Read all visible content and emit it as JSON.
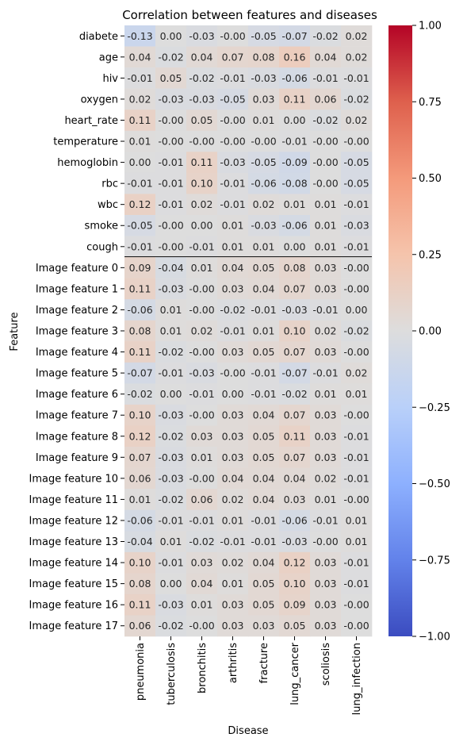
{
  "chart_data": {
    "type": "heatmap",
    "title": "Correlation between features and diseases",
    "xlabel": "Disease",
    "ylabel": "Feature",
    "columns": [
      "pneumonia",
      "tuberculosis",
      "bronchitis",
      "arthritis",
      "fracture",
      "lung_cancer",
      "scoliosis",
      "lung_infection"
    ],
    "rows": [
      {
        "label": "diabete",
        "values": [
          -0.13,
          0.0,
          -0.03,
          -0.0,
          -0.05,
          -0.07,
          -0.02,
          0.02
        ]
      },
      {
        "label": "age",
        "values": [
          0.04,
          -0.02,
          0.04,
          0.07,
          0.08,
          0.16,
          0.04,
          0.02
        ]
      },
      {
        "label": "hiv",
        "values": [
          -0.01,
          0.05,
          -0.02,
          -0.01,
          -0.03,
          -0.06,
          -0.01,
          -0.01
        ]
      },
      {
        "label": "oxygen",
        "values": [
          0.02,
          -0.03,
          -0.03,
          -0.05,
          0.03,
          0.11,
          0.06,
          -0.02
        ]
      },
      {
        "label": "heart_rate",
        "values": [
          0.11,
          -0.0,
          0.05,
          -0.0,
          0.01,
          0.0,
          -0.02,
          0.02
        ]
      },
      {
        "label": "temperature",
        "values": [
          0.01,
          -0.0,
          -0.0,
          -0.0,
          -0.0,
          -0.01,
          -0.0,
          -0.0
        ]
      },
      {
        "label": "hemoglobin",
        "values": [
          0.0,
          -0.01,
          0.11,
          -0.03,
          -0.05,
          -0.09,
          -0.0,
          -0.05
        ]
      },
      {
        "label": "rbc",
        "values": [
          -0.01,
          -0.01,
          0.1,
          -0.01,
          -0.06,
          -0.08,
          -0.0,
          -0.05
        ]
      },
      {
        "label": "wbc",
        "values": [
          0.12,
          -0.01,
          0.02,
          -0.01,
          0.02,
          0.01,
          0.01,
          -0.01
        ]
      },
      {
        "label": "smoke",
        "values": [
          -0.05,
          -0.0,
          0.0,
          0.01,
          -0.03,
          -0.06,
          0.01,
          -0.03
        ]
      },
      {
        "label": "cough",
        "values": [
          -0.01,
          -0.0,
          -0.01,
          0.01,
          0.01,
          0.0,
          0.01,
          -0.01
        ]
      },
      {
        "label": "Image feature 0",
        "values": [
          0.09,
          -0.04,
          0.01,
          0.04,
          0.05,
          0.08,
          0.03,
          -0.0
        ]
      },
      {
        "label": "Image feature 1",
        "values": [
          0.11,
          -0.03,
          -0.0,
          0.03,
          0.04,
          0.07,
          0.03,
          -0.0
        ]
      },
      {
        "label": "Image feature 2",
        "values": [
          -0.06,
          0.01,
          -0.0,
          -0.02,
          -0.01,
          -0.03,
          -0.01,
          0.0
        ]
      },
      {
        "label": "Image feature 3",
        "values": [
          0.08,
          0.01,
          0.02,
          -0.01,
          0.01,
          0.1,
          0.02,
          -0.02
        ]
      },
      {
        "label": "Image feature 4",
        "values": [
          0.11,
          -0.02,
          -0.0,
          0.03,
          0.05,
          0.07,
          0.03,
          -0.0
        ]
      },
      {
        "label": "Image feature 5",
        "values": [
          -0.07,
          -0.01,
          -0.03,
          -0.0,
          -0.01,
          -0.07,
          -0.01,
          0.02
        ]
      },
      {
        "label": "Image feature 6",
        "values": [
          -0.02,
          0.0,
          -0.01,
          0.0,
          -0.01,
          -0.02,
          0.01,
          0.01
        ]
      },
      {
        "label": "Image feature 7",
        "values": [
          0.1,
          -0.03,
          -0.0,
          0.03,
          0.04,
          0.07,
          0.03,
          -0.0
        ]
      },
      {
        "label": "Image feature 8",
        "values": [
          0.12,
          -0.02,
          0.03,
          0.03,
          0.05,
          0.11,
          0.03,
          -0.01
        ]
      },
      {
        "label": "Image feature 9",
        "values": [
          0.07,
          -0.03,
          0.01,
          0.03,
          0.05,
          0.07,
          0.03,
          -0.01
        ]
      },
      {
        "label": "Image feature 10",
        "values": [
          0.06,
          -0.03,
          -0.0,
          0.04,
          0.04,
          0.04,
          0.02,
          -0.01
        ]
      },
      {
        "label": "Image feature 11",
        "values": [
          0.01,
          -0.02,
          0.06,
          0.02,
          0.04,
          0.03,
          0.01,
          -0.0
        ]
      },
      {
        "label": "Image feature 12",
        "values": [
          -0.06,
          -0.01,
          -0.01,
          0.01,
          -0.01,
          -0.06,
          -0.01,
          0.01
        ]
      },
      {
        "label": "Image feature 13",
        "values": [
          -0.04,
          0.01,
          -0.02,
          -0.01,
          -0.01,
          -0.03,
          -0.0,
          0.01
        ]
      },
      {
        "label": "Image feature 14",
        "values": [
          0.1,
          -0.01,
          0.03,
          0.02,
          0.04,
          0.12,
          0.03,
          -0.01
        ]
      },
      {
        "label": "Image feature 15",
        "values": [
          0.08,
          0.0,
          0.04,
          0.01,
          0.05,
          0.1,
          0.03,
          -0.01
        ]
      },
      {
        "label": "Image feature 16",
        "values": [
          0.11,
          -0.03,
          0.01,
          0.03,
          0.05,
          0.09,
          0.03,
          -0.0
        ]
      },
      {
        "label": "Image feature 17",
        "values": [
          0.06,
          -0.02,
          -0.0,
          0.03,
          0.03,
          0.05,
          0.03,
          -0.0
        ]
      }
    ],
    "value_range": [
      -1.0,
      1.0
    ],
    "colormap": "coolwarm",
    "colorbar_ticks": [
      "1.00",
      "0.75",
      "0.50",
      "0.25",
      "0.00",
      "−0.25",
      "−0.50",
      "−0.75",
      "−1.00"
    ],
    "colorbar_values": [
      1.0,
      0.75,
      0.5,
      0.25,
      0.0,
      -0.25,
      -0.5,
      -0.75,
      -1.0
    ],
    "separator_after_row": "cough",
    "colors": {
      "low": "#3b4cc0",
      "mid": "#dddddd",
      "high": "#b40426",
      "separator": "#000000"
    }
  }
}
